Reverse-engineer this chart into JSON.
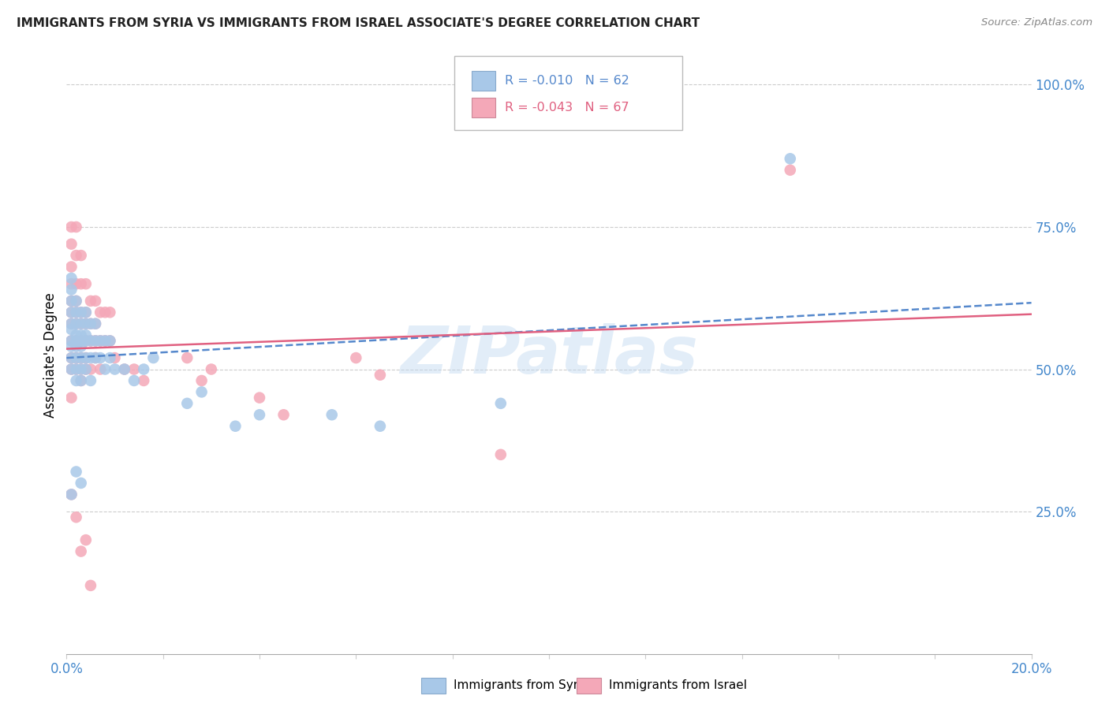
{
  "title": "IMMIGRANTS FROM SYRIA VS IMMIGRANTS FROM ISRAEL ASSOCIATE'S DEGREE CORRELATION CHART",
  "source": "Source: ZipAtlas.com",
  "ylabel": "Associate's Degree",
  "legend_syria_R": "-0.010",
  "legend_syria_N": "62",
  "legend_israel_R": "-0.043",
  "legend_israel_N": "67",
  "syria_color": "#a8c8e8",
  "israel_color": "#f4a8b8",
  "syria_line_color": "#5588cc",
  "israel_line_color": "#e06080",
  "right_ytick_vals": [
    0.25,
    0.5,
    0.75,
    1.0
  ],
  "right_ytick_labels": [
    "25.0%",
    "50.0%",
    "75.0%",
    "100.0%"
  ],
  "xlim": [
    0.0,
    0.2
  ],
  "ylim": [
    0.0,
    1.05
  ],
  "background_color": "#ffffff",
  "grid_color": "#cccccc",
  "title_color": "#222222",
  "source_color": "#888888",
  "axis_label_color": "#4488cc",
  "watermark": "ZIPatlas",
  "syria_x": [
    0.001,
    0.001,
    0.001,
    0.001,
    0.001,
    0.001,
    0.001,
    0.001,
    0.001,
    0.001,
    0.002,
    0.002,
    0.002,
    0.002,
    0.002,
    0.002,
    0.002,
    0.002,
    0.002,
    0.003,
    0.003,
    0.003,
    0.003,
    0.003,
    0.003,
    0.003,
    0.003,
    0.004,
    0.004,
    0.004,
    0.004,
    0.004,
    0.004,
    0.005,
    0.005,
    0.005,
    0.005,
    0.006,
    0.006,
    0.006,
    0.007,
    0.007,
    0.008,
    0.008,
    0.009,
    0.009,
    0.01,
    0.012,
    0.014,
    0.016,
    0.018,
    0.025,
    0.028,
    0.035,
    0.04,
    0.055,
    0.065,
    0.09,
    0.15,
    0.001,
    0.002,
    0.003
  ],
  "syria_y": [
    0.55,
    0.58,
    0.6,
    0.62,
    0.5,
    0.52,
    0.54,
    0.57,
    0.64,
    0.66,
    0.55,
    0.58,
    0.6,
    0.52,
    0.54,
    0.56,
    0.5,
    0.48,
    0.62,
    0.55,
    0.58,
    0.6,
    0.56,
    0.52,
    0.54,
    0.5,
    0.48,
    0.55,
    0.58,
    0.6,
    0.52,
    0.56,
    0.5,
    0.55,
    0.58,
    0.52,
    0.48,
    0.55,
    0.58,
    0.52,
    0.55,
    0.52,
    0.55,
    0.5,
    0.55,
    0.52,
    0.5,
    0.5,
    0.48,
    0.5,
    0.52,
    0.44,
    0.46,
    0.4,
    0.42,
    0.42,
    0.4,
    0.44,
    0.87,
    0.28,
    0.32,
    0.3
  ],
  "israel_x": [
    0.001,
    0.001,
    0.001,
    0.001,
    0.001,
    0.001,
    0.001,
    0.001,
    0.001,
    0.001,
    0.001,
    0.002,
    0.002,
    0.002,
    0.002,
    0.002,
    0.002,
    0.002,
    0.002,
    0.002,
    0.003,
    0.003,
    0.003,
    0.003,
    0.003,
    0.003,
    0.003,
    0.003,
    0.004,
    0.004,
    0.004,
    0.004,
    0.004,
    0.004,
    0.005,
    0.005,
    0.005,
    0.005,
    0.006,
    0.006,
    0.006,
    0.006,
    0.007,
    0.007,
    0.007,
    0.008,
    0.008,
    0.009,
    0.009,
    0.01,
    0.012,
    0.014,
    0.016,
    0.025,
    0.028,
    0.03,
    0.04,
    0.045,
    0.06,
    0.065,
    0.09,
    0.15,
    0.001,
    0.002,
    0.003,
    0.004,
    0.005
  ],
  "israel_y": [
    0.55,
    0.58,
    0.62,
    0.65,
    0.68,
    0.72,
    0.75,
    0.6,
    0.5,
    0.52,
    0.45,
    0.6,
    0.62,
    0.65,
    0.58,
    0.55,
    0.52,
    0.5,
    0.7,
    0.75,
    0.6,
    0.65,
    0.7,
    0.55,
    0.52,
    0.58,
    0.5,
    0.48,
    0.6,
    0.65,
    0.55,
    0.52,
    0.58,
    0.5,
    0.62,
    0.58,
    0.55,
    0.5,
    0.62,
    0.58,
    0.55,
    0.52,
    0.6,
    0.55,
    0.5,
    0.6,
    0.55,
    0.6,
    0.55,
    0.52,
    0.5,
    0.5,
    0.48,
    0.52,
    0.48,
    0.5,
    0.45,
    0.42,
    0.52,
    0.49,
    0.35,
    0.85,
    0.28,
    0.24,
    0.18,
    0.2,
    0.12
  ]
}
